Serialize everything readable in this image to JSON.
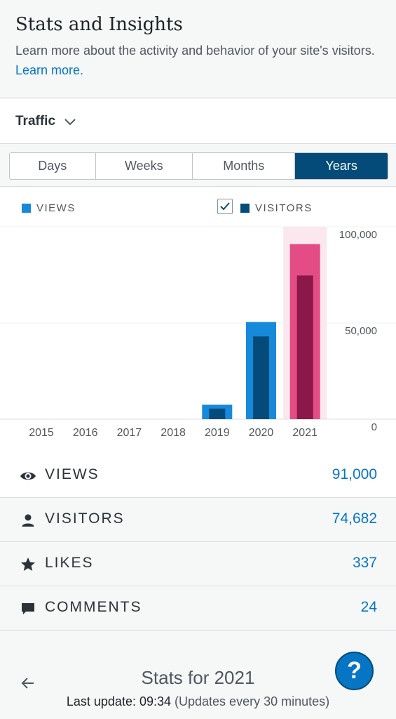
{
  "header": {
    "title": "Stats and Insights",
    "description": "Learn more about the activity and behavior of your site's visitors.",
    "learn_more": "Learn more."
  },
  "traffic": {
    "label": "Traffic",
    "icon": "chevron-down-icon"
  },
  "tabs": [
    {
      "label": "Days",
      "active": false
    },
    {
      "label": "Weeks",
      "active": false
    },
    {
      "label": "Months",
      "active": false
    },
    {
      "label": "Years",
      "active": true
    }
  ],
  "legend": {
    "views": "VIEWS",
    "visitors": "VISITORS",
    "visitors_checked": true
  },
  "chart_data": {
    "type": "bar",
    "categories": [
      "2015",
      "2016",
      "2017",
      "2018",
      "2019",
      "2020",
      "2021"
    ],
    "series": [
      {
        "name": "VIEWS",
        "values": [
          0,
          0,
          0,
          0,
          7500,
          50500,
          91000
        ]
      },
      {
        "name": "VISITORS",
        "values": [
          0,
          0,
          0,
          0,
          5500,
          43000,
          74682
        ]
      }
    ],
    "y_ticks": [
      "100,000",
      "50,000",
      "0"
    ],
    "ylim": [
      0,
      100000
    ],
    "highlighted_category": "2021",
    "colors": {
      "views": "#1689db",
      "visitors": "#044b7a",
      "views_selected": "#e34c84",
      "visitors_selected": "#8c1749",
      "selected_band": "#fbe8ee"
    }
  },
  "stats": [
    {
      "label": "VIEWS",
      "value": "91,000",
      "icon": "eye-icon"
    },
    {
      "label": "VISITORS",
      "value": "74,682",
      "icon": "person-icon"
    },
    {
      "label": "LIKES",
      "value": "337",
      "icon": "star-icon"
    },
    {
      "label": "COMMENTS",
      "value": "24",
      "icon": "comment-icon"
    }
  ],
  "footer": {
    "title": "Stats for 2021",
    "last_update_label": "Last update: 09:34",
    "update_note": "(Updates every 30 minutes)",
    "help": "?"
  }
}
